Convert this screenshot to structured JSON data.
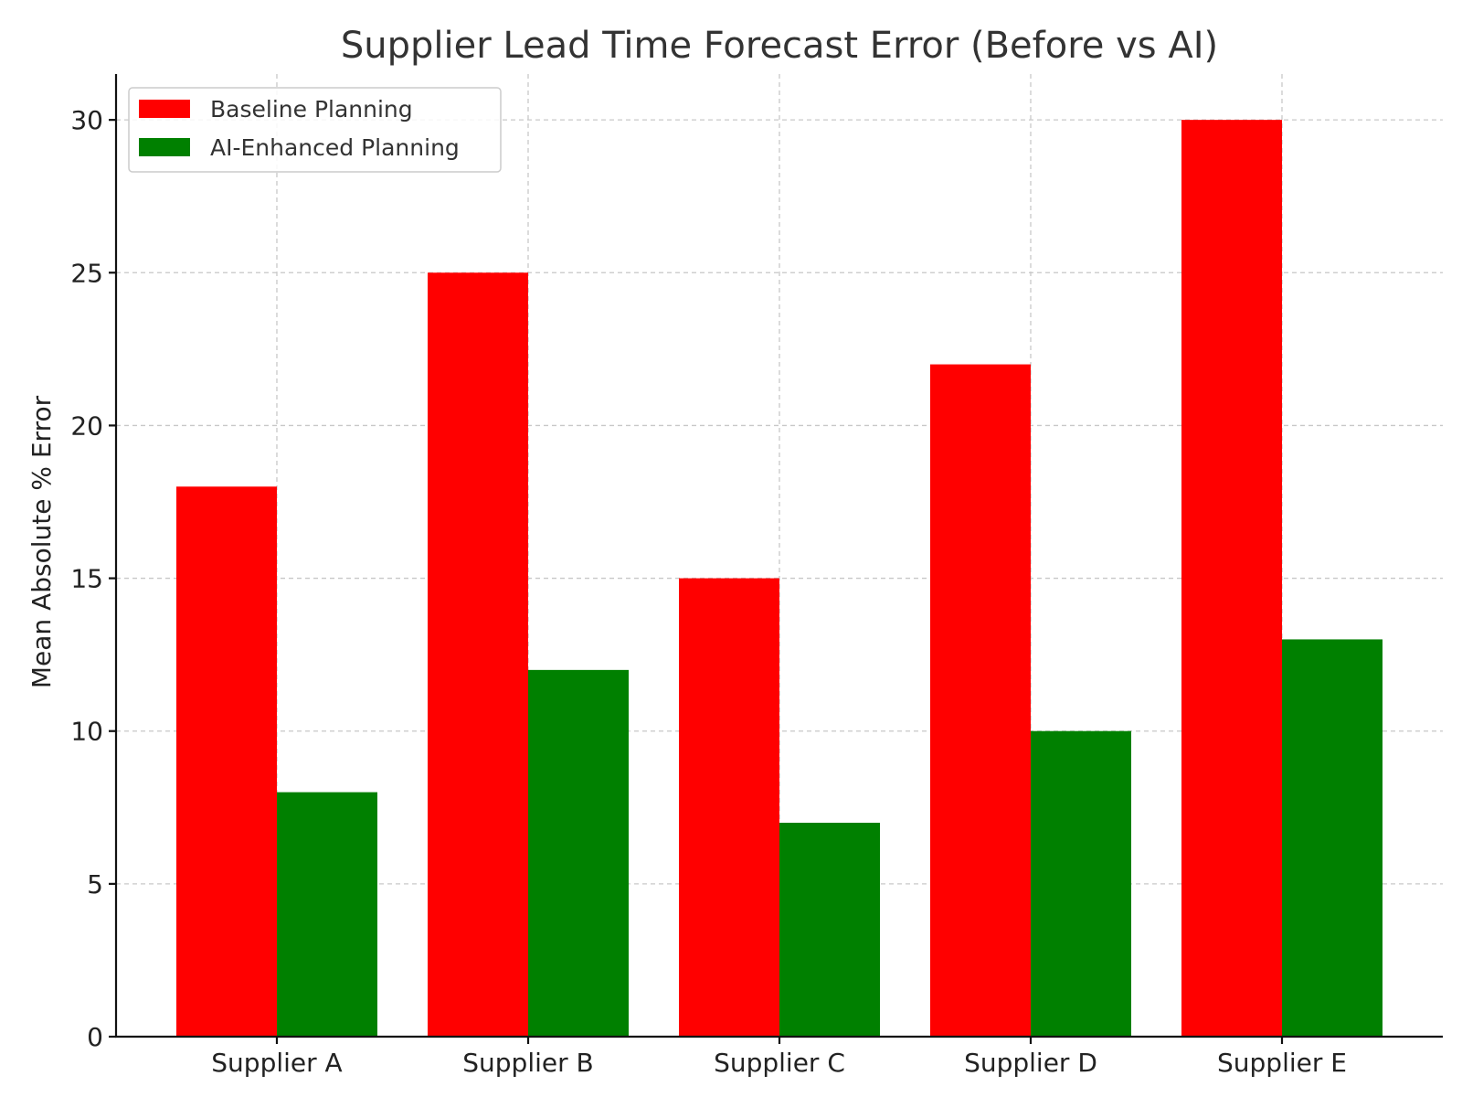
{
  "chart_data": {
    "type": "bar",
    "title": "Supplier Lead Time Forecast Error (Before vs AI)",
    "xlabel": "",
    "ylabel": "Mean Absolute % Error",
    "categories": [
      "Supplier A",
      "Supplier B",
      "Supplier C",
      "Supplier D",
      "Supplier E"
    ],
    "series": [
      {
        "name": "Baseline Planning",
        "color": "#ff0000",
        "values": [
          18,
          25,
          15,
          22,
          30
        ]
      },
      {
        "name": "AI-Enhanced Planning",
        "color": "#008000",
        "values": [
          8,
          12,
          7,
          10,
          13
        ]
      }
    ],
    "ylim": [
      0,
      31.5
    ],
    "yticks": [
      0,
      5,
      10,
      15,
      20,
      25,
      30
    ],
    "grid": true,
    "legend_position": "top-left"
  }
}
